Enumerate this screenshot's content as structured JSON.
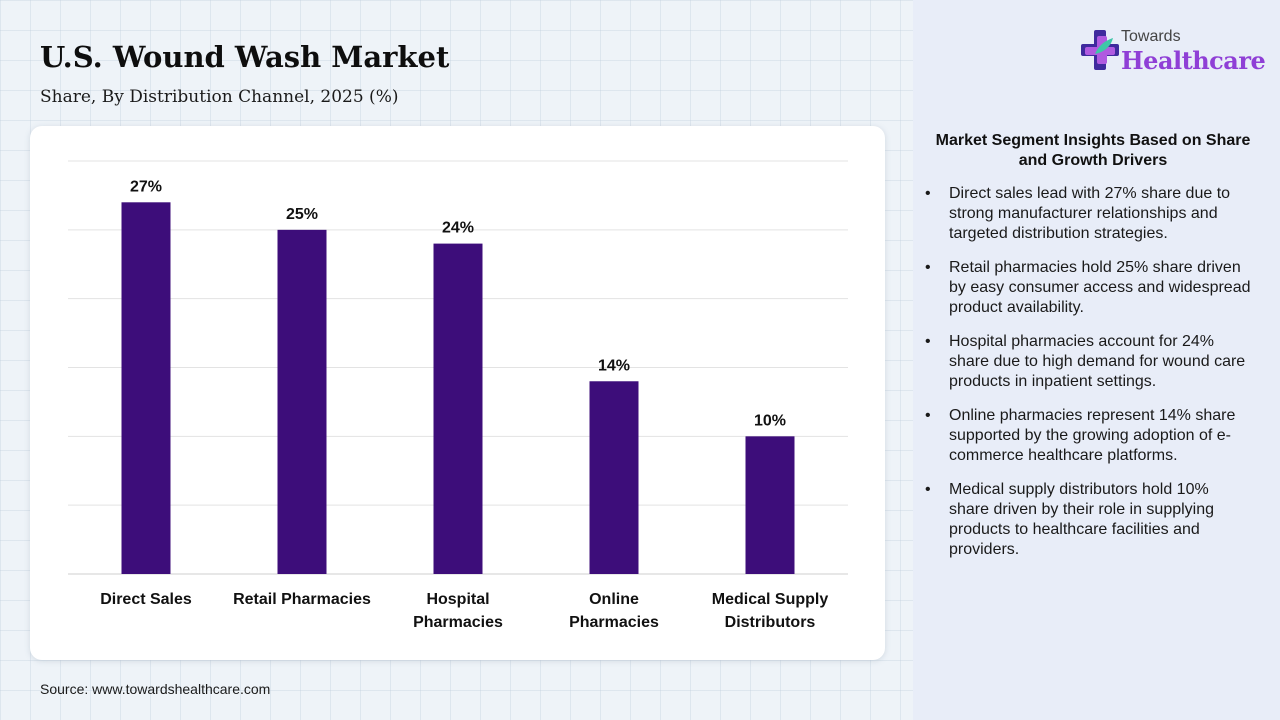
{
  "title": "U.S. Wound Wash Market",
  "subtitle": "Share, By Distribution Channel, 2025 (%)",
  "source": "Source: www.towardshealthcare.com",
  "logo": {
    "top": "Towards",
    "main": "Healthcare",
    "icon": "cross-icon"
  },
  "colors": {
    "bar": "#3d0d7a",
    "logo_accent": "#8f3fd6",
    "panel_bg": "#e8edf8"
  },
  "chart_data": {
    "type": "bar",
    "categories": [
      "Direct Sales",
      "Retail Pharmacies",
      "Hospital Pharmacies",
      "Online Pharmacies",
      "Medical Supply Distributors"
    ],
    "category_lines": [
      [
        "Direct Sales"
      ],
      [
        "Retail Pharmacies"
      ],
      [
        "Hospital",
        "Pharmacies"
      ],
      [
        "Online",
        "Pharmacies"
      ],
      [
        "Medical Supply",
        "Distributors"
      ]
    ],
    "values": [
      27,
      25,
      24,
      14,
      10
    ],
    "value_labels": [
      "27%",
      "25%",
      "24%",
      "14%",
      "10%"
    ],
    "ylim": [
      0,
      30
    ],
    "grid": true,
    "xlabel": "",
    "ylabel": ""
  },
  "insights": {
    "title": "Market Segment Insights Based on Share and Growth Drivers",
    "items": [
      "Direct sales lead with 27% share due to strong manufacturer relationships and targeted distribution strategies.",
      "Retail pharmacies hold 25% share driven by easy consumer access and widespread product availability.",
      "Hospital pharmacies account for 24% share due to high demand for wound care products in inpatient settings.",
      "Online pharmacies represent 14% share supported by the growing adoption of e-commerce healthcare platforms.",
      "Medical supply distributors hold 10% share driven by their role in supplying products to healthcare facilities and providers."
    ]
  }
}
